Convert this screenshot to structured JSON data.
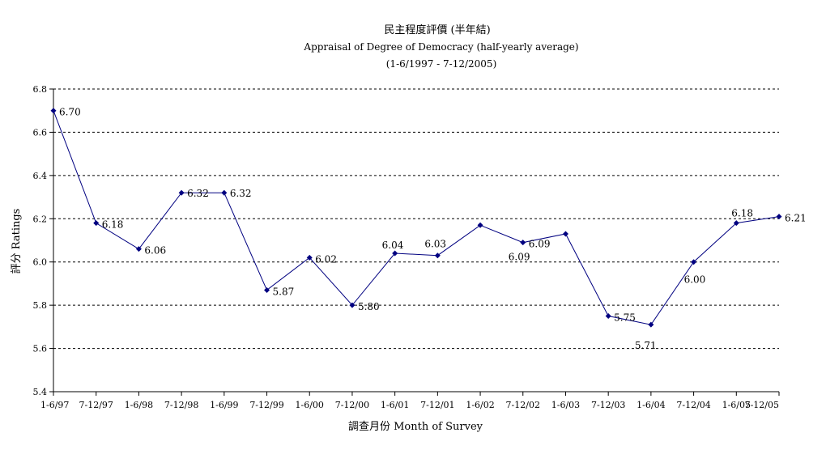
{
  "chart_data": {
    "type": "line",
    "title": "民主程度評價 (半年結)",
    "subtitle": "Appraisal of Degree of Democracy (half-yearly average)",
    "period": "(1-6/1997 - 7-12/2005)",
    "xlabel": "調查月份 Month of Survey",
    "ylabel": "評分 Ratings",
    "ylim": [
      5.4,
      6.8
    ],
    "yticks": [
      "5.4",
      "5.6",
      "5.8",
      "6.0",
      "6.2",
      "6.4",
      "6.6",
      "6.8"
    ],
    "grid": "horizontal dashed",
    "categories": [
      "1-6/97",
      "7-12/97",
      "1-6/98",
      "7-12/98",
      "1-6/99",
      "7-12/99",
      "1-6/00",
      "7-12/00",
      "1-6/01",
      "7-12/01",
      "1-6/02",
      "7-12/02",
      "1-6/03",
      "7-12/03",
      "1-6/04",
      "7-12/04",
      "1-6/05",
      "7-12/05"
    ],
    "values": [
      6.7,
      6.18,
      6.06,
      6.32,
      6.32,
      5.87,
      6.02,
      5.8,
      6.04,
      6.03,
      6.17,
      6.09,
      6.13,
      5.75,
      5.71,
      6.0,
      6.18,
      6.21
    ],
    "data_labels": [
      "6.70",
      "6.18",
      "6.06",
      "6.32",
      "6.32",
      "5.87",
      "6.02",
      "5.80",
      "6.04",
      "6.03",
      "",
      "6.09",
      "",
      "5.75",
      "5.71",
      "6.00",
      "6.18",
      "6.21"
    ],
    "extra_labels": [
      {
        "index": 11,
        "text": "6.09"
      }
    ],
    "colors": {
      "line": "#000080",
      "marker": "#000080",
      "grid": "#000000"
    }
  }
}
